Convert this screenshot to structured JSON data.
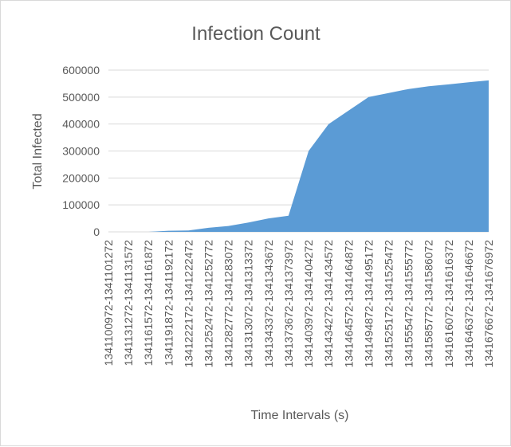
{
  "chart_data": {
    "type": "area",
    "title": "Infection Count",
    "xlabel": "Time Intervals (s)",
    "ylabel": "Total Infected",
    "ylim": [
      0,
      600000
    ],
    "yticks": [
      "0",
      "100000",
      "200000",
      "300000",
      "400000",
      "500000",
      "600000"
    ],
    "grid": true,
    "legend": "none",
    "fill_color": "#5b9bd5",
    "categories": [
      "1341100972-1341101272",
      "1341131272-1341131572",
      "1341161572-1341161872",
      "1341191872-1341192172",
      "1341222172-1341222472",
      "1341252472-1341252772",
      "1341282772-1341283072",
      "1341313072-1341313372",
      "1341343372-1341343672",
      "1341373672-1341373972",
      "1341403972-1341404272",
      "1341434272-1341434572",
      "1341464572-1341464872",
      "1341494872-1341495172",
      "1341525172-1341525472",
      "1341555472-1341555772",
      "1341585772-1341586072",
      "1341616072-1341616372",
      "1341646372-1341646672",
      "1341676672-1341676972"
    ],
    "series": [
      {
        "values": [
          0,
          0,
          0,
          4000,
          5000,
          15000,
          22000,
          35000,
          50000,
          60000,
          300000,
          400000,
          450000,
          500000,
          515000,
          530000,
          540000,
          547000,
          555000,
          562000
        ]
      }
    ]
  }
}
